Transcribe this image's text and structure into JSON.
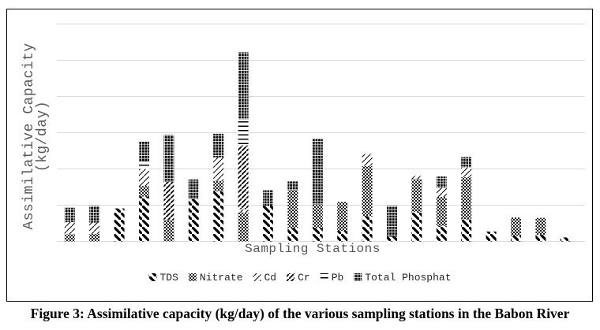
{
  "figure": {
    "caption": "Figure 3: Assimilative capacity (kg/day) of the various sampling stations in the Babon River"
  },
  "chart_data": {
    "type": "bar",
    "stacked": true,
    "title": "",
    "xlabel": "Sampling Stations",
    "ylabel": "Assimilative Capacity (kg/day)",
    "ylabel_lines": [
      "Assimilative Capacity",
      "(kg/day)"
    ],
    "ylim": [
      0,
      6
    ],
    "y_tick_labels": [],
    "x_tick_labels": [],
    "grid": "horizontal gridlines, 6 equal unlabeled intervals",
    "legend_position": "bottom-center",
    "stations": 21,
    "units_note": "y-axis shows no numeric labels; segment values estimated in gridline units (1 = one gridline interval)",
    "series": [
      {
        "name": "TDS",
        "pattern_desc": "bold backslash diagonal hatch",
        "values": [
          0,
          0,
          0.91,
          1.24,
          0,
          1.17,
          1.38,
          0,
          0.98,
          0.37,
          0.37,
          0.29,
          0.7,
          0.13,
          0.82,
          0.43,
          0.61,
          0.27,
          0.15,
          0.18,
          0.11
        ]
      },
      {
        "name": "Nitrate",
        "pattern_desc": "gray dotted checker",
        "values": [
          0.2,
          0.21,
          0,
          0.29,
          0.59,
          0,
          0.29,
          0.8,
          0,
          1.05,
          0.65,
          0.8,
          1.38,
          0,
          0.9,
          0.8,
          1.16,
          0,
          0.51,
          0.47,
          0
        ]
      },
      {
        "name": "Cd",
        "pattern_desc": "thin forward-slash diagonal hatch",
        "values": [
          0.33,
          0.31,
          0,
          0.47,
          0,
          0,
          0.65,
          0.09,
          0,
          0,
          0,
          0,
          0.34,
          0,
          0.09,
          0.25,
          0.27,
          0,
          0,
          0,
          0
        ]
      },
      {
        "name": "Cr",
        "pattern_desc": "medium forward-slash diagonal hatch",
        "values": [
          0,
          0,
          0,
          0,
          1.05,
          0,
          0,
          1.76,
          0,
          0,
          0,
          0,
          0,
          0,
          0,
          0,
          0,
          0,
          0,
          0,
          0
        ]
      },
      {
        "name": "Pb",
        "pattern_desc": "horizontal lines",
        "values": [
          0,
          0,
          0,
          0.22,
          0,
          0,
          0,
          0.72,
          0,
          0,
          0,
          0,
          0,
          0,
          0,
          0,
          0,
          0,
          0,
          0,
          0
        ]
      },
      {
        "name": "Total Phosphat",
        "pattern_desc": "dense black dots",
        "values": [
          0.4,
          0.46,
          0,
          0.54,
          1.3,
          0.54,
          0.65,
          1.85,
          0.43,
          0.25,
          1.81,
          0,
          0,
          0.85,
          0,
          0.31,
          0.29,
          0,
          0,
          0,
          0
        ]
      }
    ]
  },
  "colors": {
    "background": "#ffffff",
    "border": "#000000",
    "gridline": "#d9d9d9",
    "axis_text": "#595959",
    "legend_text": "#262626",
    "pattern": "#000000",
    "nitrate_fill": "#1c1c1c"
  }
}
